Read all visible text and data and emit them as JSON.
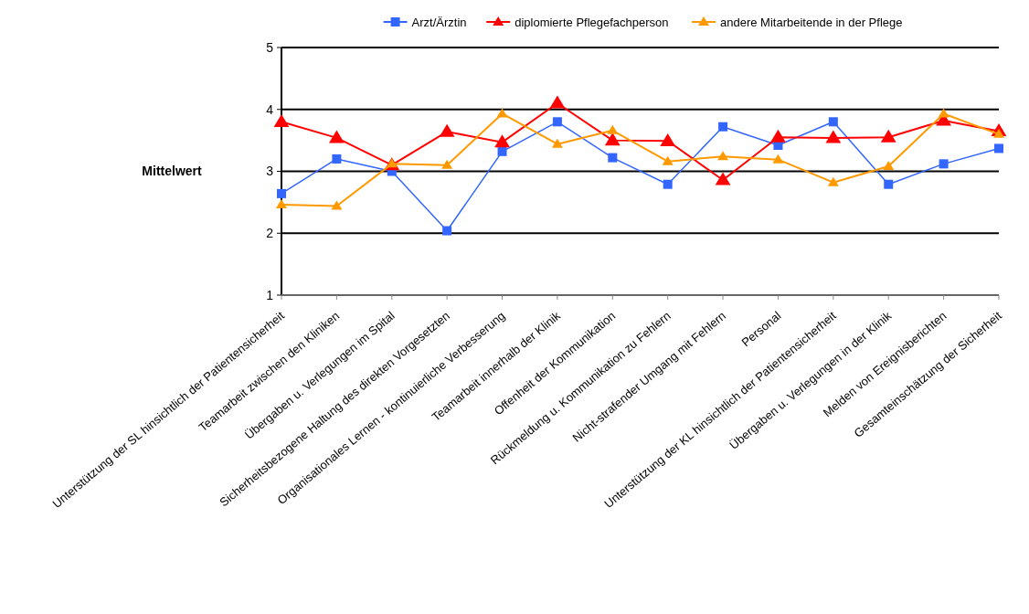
{
  "chart_data": {
    "type": "line",
    "ylabel": "Mittelwert",
    "categories": [
      "Unterstützung der SL hinsichtlich der Patientensicherheit",
      "Teamarbeit zwischen den Kliniken",
      "Übergaben u. Verlegungen im Spital",
      "Sicherheitsbezogene Haltung des direkten Vorgesetzten",
      "Organisationales Lernen - kontinuierliche Verbesserung",
      "Teamarbeit innerhalb der Klinik",
      "Offenheit der Kommunikation",
      "Rückmeldung u. Kommunikation zu Fehlern",
      "Nicht-strafender Umgang mit Fehlern",
      "Personal",
      "Unterstützung der KL hinsichtlich der Patientensicherheit",
      "Übergaben u. Verlegungen in der Klinik",
      "Melden von Ereignisberichten",
      "Gesamteinschätzung der Sicherheit"
    ],
    "series": [
      {
        "name": "Arzt/Ärztin",
        "color": "#3366ff",
        "marker": "square",
        "values": [
          2.64,
          3.2,
          3.0,
          2.04,
          3.32,
          3.8,
          3.22,
          2.79,
          3.72,
          3.42,
          3.8,
          2.79,
          3.12,
          3.37
        ]
      },
      {
        "name": "diplomierte Pflegefachperson",
        "color": "#ff0000",
        "marker": "triangle",
        "values": [
          3.8,
          3.54,
          3.1,
          3.64,
          3.47,
          4.1,
          3.5,
          3.49,
          2.86,
          3.55,
          3.54,
          3.55,
          3.82,
          3.65
        ]
      },
      {
        "name": "andere Mitarbeitende in der Pflege",
        "color": "#ff9900",
        "marker": "triangle",
        "values": [
          2.46,
          2.44,
          3.12,
          3.1,
          3.93,
          3.44,
          3.66,
          3.16,
          3.24,
          3.19,
          2.82,
          3.08,
          3.93,
          3.6
        ]
      }
    ],
    "ylim": [
      1,
      5
    ],
    "yticks": [
      1,
      2,
      3,
      4,
      5
    ],
    "grid": "y",
    "legend": "top"
  }
}
